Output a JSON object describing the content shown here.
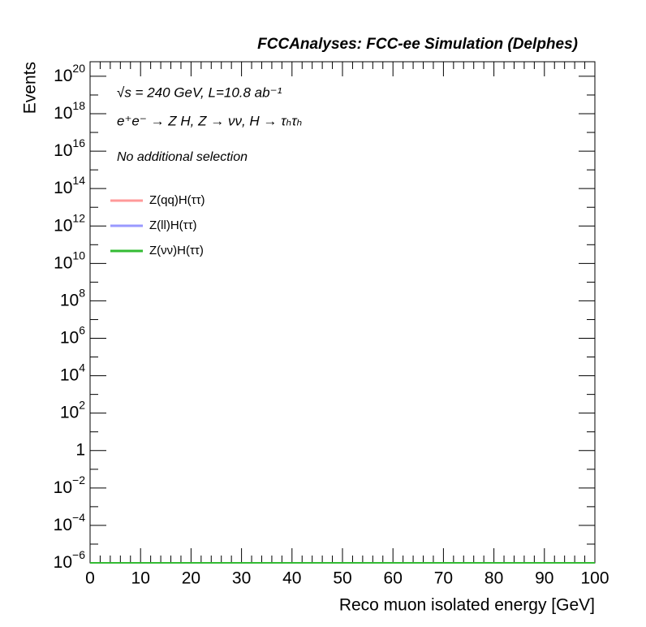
{
  "chart_data": {
    "type": "line",
    "title": "FCCAnalyses: FCC-ee Simulation (Delphes)",
    "annotations": [
      "√s = 240 GeV, L=10.8 ab⁻¹",
      "e⁺e⁻ → Z H, Z → νν, H → τₕτₕ",
      "No additional selection"
    ],
    "x_label": "Reco muon isolated energy [GeV]",
    "y_label": "Events",
    "x": [
      0,
      100
    ],
    "series": [
      {
        "name": "Z(qq)H(ττ)",
        "color": "#ff9999",
        "values": [
          1e-06,
          1e-06
        ]
      },
      {
        "name": "Z(ll)H(ττ)",
        "color": "#9999ff",
        "values": [
          1e-06,
          1e-06
        ]
      },
      {
        "name": "Z(νν)H(ττ)",
        "color": "#33bb33",
        "values": [
          1e-06,
          1e-06
        ]
      }
    ],
    "xlim": [
      0,
      100
    ],
    "xticks": [
      0,
      10,
      20,
      30,
      40,
      50,
      60,
      70,
      80,
      90,
      100
    ],
    "ylim": [
      1e-06,
      6e+20
    ],
    "log_y": true,
    "yticks": [
      {
        "value": 1e-06,
        "label": "10^-6"
      },
      {
        "value": 0.0001,
        "label": "10^-4"
      },
      {
        "value": 0.01,
        "label": "10^-2"
      },
      1,
      {
        "value": 100,
        "label": "10^2"
      },
      {
        "value": 10000,
        "label": "10^4"
      },
      {
        "value": 1000000.0,
        "label": "10^6"
      },
      {
        "value": 100000000.0,
        "label": "10^8"
      },
      {
        "value": 10000000000.0,
        "label": "10^10"
      },
      {
        "value": 1000000000000.0,
        "label": "10^12"
      },
      {
        "value": 100000000000000.0,
        "label": "10^14"
      },
      {
        "value": 1e+16,
        "label": "10^16"
      },
      {
        "value": 1e+18,
        "label": "10^18"
      },
      {
        "value": 1e+20,
        "label": "10^20"
      }
    ],
    "grid": false,
    "legend": "upper left"
  }
}
